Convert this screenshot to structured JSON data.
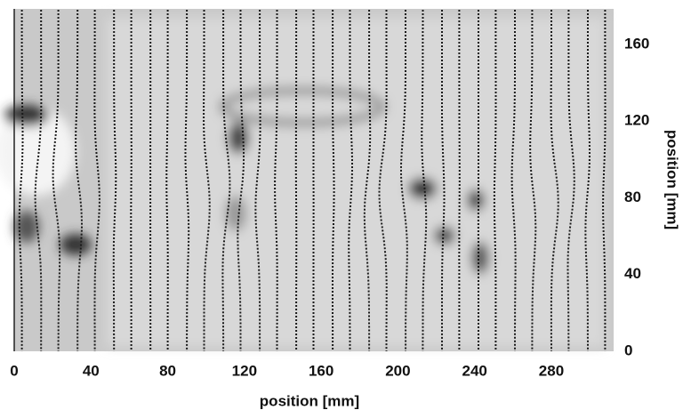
{
  "chart_data": {
    "type": "vector-field",
    "xlabel": "position [mm]",
    "ylabel": "position [mm]",
    "xlim": [
      0,
      312
    ],
    "ylim": [
      0,
      178
    ],
    "xticks": [
      0,
      40,
      80,
      120,
      160,
      200,
      240,
      280
    ],
    "yticks": [
      0,
      40,
      80,
      120,
      160
    ],
    "x": [
      4,
      14,
      23,
      33,
      42,
      52,
      61,
      71,
      80,
      90,
      99,
      109,
      118,
      128,
      137,
      147,
      156,
      166,
      175,
      185,
      194,
      204,
      213,
      223,
      232,
      242,
      251,
      261,
      270,
      280,
      289,
      299,
      308
    ],
    "color": "#1a1a1a"
  }
}
